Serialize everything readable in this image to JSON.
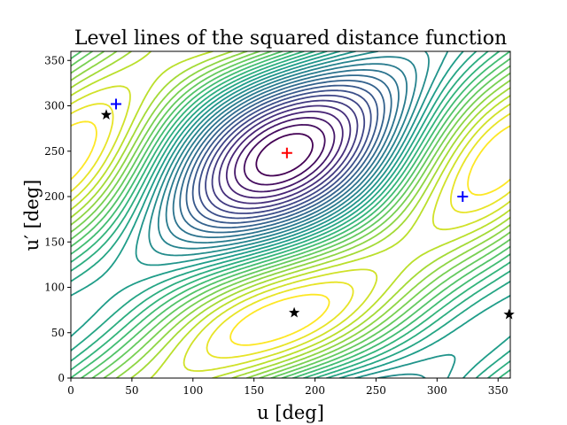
{
  "chart_data": {
    "type": "contour",
    "title": "Level lines of the squared distance function",
    "xlabel": "u [deg]",
    "ylabel": "u′ [deg]",
    "xlim": [
      0,
      360
    ],
    "ylim": [
      0,
      360
    ],
    "xticks": [
      0,
      50,
      100,
      150,
      200,
      250,
      300,
      350
    ],
    "yticks": [
      0,
      50,
      100,
      150,
      200,
      250,
      300,
      350
    ],
    "colormap": "viridis",
    "grid": false,
    "markers": [
      {
        "symbol": "plus",
        "color": "#ff0000",
        "x": 177,
        "y": 248
      },
      {
        "symbol": "plus",
        "color": "#0000ff",
        "x": 37,
        "y": 302
      },
      {
        "symbol": "plus",
        "color": "#0000ff",
        "x": 321,
        "y": 200
      },
      {
        "symbol": "star",
        "color": "#000000",
        "x": 29,
        "y": 290
      },
      {
        "symbol": "star",
        "color": "#000000",
        "x": 183,
        "y": 72
      },
      {
        "symbol": "star",
        "color": "#000000",
        "x": 359,
        "y": 70
      }
    ]
  }
}
